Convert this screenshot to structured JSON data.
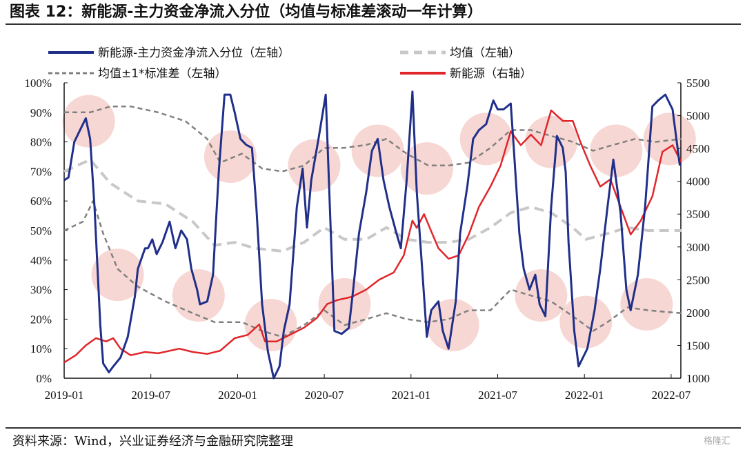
{
  "title": "图表 12：新能源-主力资金净流入分位（均值与标准差滚动一年计算）",
  "source": "资料来源：Wind，兴业证券经济与金融研究院整理",
  "watermark": "格隆汇",
  "chart_data": {
    "type": "line",
    "x_unit": "months since 2019-01",
    "x_ticks": [
      {
        "m": 0,
        "label": "2019-01"
      },
      {
        "m": 6,
        "label": "2019-07"
      },
      {
        "m": 12,
        "label": "2020-01"
      },
      {
        "m": 18,
        "label": "2020-07"
      },
      {
        "m": 24,
        "label": "2021-01"
      },
      {
        "m": 30,
        "label": "2021-07"
      },
      {
        "m": 36,
        "label": "2022-01"
      },
      {
        "m": 42,
        "label": "2022-07"
      }
    ],
    "xlim": [
      0,
      42.7
    ],
    "ylim_left": [
      0,
      100
    ],
    "ylim_right": [
      1000,
      5500
    ],
    "left_ticks": [
      "0%",
      "10%",
      "20%",
      "30%",
      "40%",
      "50%",
      "60%",
      "70%",
      "80%",
      "90%",
      "100%"
    ],
    "right_ticks": [
      "1000",
      "1500",
      "2000",
      "2500",
      "3000",
      "3500",
      "4000",
      "4500",
      "5000",
      "5500"
    ],
    "legend": {
      "placement": "top",
      "items": [
        {
          "label": "新能源-主力资金净流入分位（左轴）",
          "color": "#1f2f8a",
          "style": "solid"
        },
        {
          "label": "均值（左轴）",
          "color": "#c8c8c8",
          "style": "dash"
        },
        {
          "label": "均值±1*标准差（左轴）",
          "color": "#808080",
          "style": "dash"
        },
        {
          "label": "新能源（右轴）",
          "color": "#e0262a",
          "style": "solid"
        }
      ]
    },
    "series": [
      {
        "name": "新能源-主力资金净流入分位（左轴）",
        "axis": "left",
        "color": "#1f2f8a",
        "width": 3,
        "dash": "",
        "points": [
          [
            0,
            67
          ],
          [
            0.3,
            68
          ],
          [
            0.7,
            80
          ],
          [
            1.1,
            84
          ],
          [
            1.5,
            88
          ],
          [
            1.8,
            81
          ],
          [
            2.1,
            58
          ],
          [
            2.5,
            18
          ],
          [
            2.7,
            5
          ],
          [
            3.1,
            2
          ],
          [
            3.4,
            4
          ],
          [
            3.9,
            7
          ],
          [
            4.4,
            14
          ],
          [
            4.9,
            28
          ],
          [
            5.1,
            37
          ],
          [
            5.6,
            44
          ],
          [
            5.8,
            44
          ],
          [
            6.1,
            47
          ],
          [
            6.4,
            42
          ],
          [
            6.8,
            46
          ],
          [
            7.3,
            53
          ],
          [
            7.7,
            44
          ],
          [
            8.1,
            50
          ],
          [
            8.5,
            47
          ],
          [
            8.8,
            37
          ],
          [
            9.2,
            30
          ],
          [
            9.4,
            25
          ],
          [
            9.9,
            26
          ],
          [
            10.3,
            35
          ],
          [
            10.7,
            70
          ],
          [
            11.1,
            96
          ],
          [
            11.5,
            96
          ],
          [
            11.8,
            90
          ],
          [
            12.2,
            81
          ],
          [
            12.6,
            79
          ],
          [
            13.0,
            78
          ],
          [
            13.3,
            58
          ],
          [
            13.7,
            25
          ],
          [
            14.1,
            9
          ],
          [
            14.5,
            0
          ],
          [
            14.9,
            4
          ],
          [
            15.2,
            16
          ],
          [
            15.6,
            25
          ],
          [
            16.1,
            58
          ],
          [
            16.5,
            71
          ],
          [
            16.8,
            51
          ],
          [
            17.1,
            67
          ],
          [
            17.6,
            81
          ],
          [
            18.1,
            96
          ],
          [
            18.4,
            56
          ],
          [
            18.7,
            16
          ],
          [
            19.2,
            15
          ],
          [
            19.7,
            17
          ],
          [
            20.0,
            30
          ],
          [
            20.4,
            49
          ],
          [
            20.9,
            63
          ],
          [
            21.3,
            77
          ],
          [
            21.7,
            81
          ],
          [
            22.1,
            67
          ],
          [
            22.5,
            58
          ],
          [
            23.0,
            49
          ],
          [
            23.3,
            44
          ],
          [
            23.7,
            67
          ],
          [
            24.1,
            97
          ],
          [
            24.4,
            63
          ],
          [
            24.8,
            35
          ],
          [
            25.1,
            14
          ],
          [
            25.4,
            23
          ],
          [
            25.9,
            26
          ],
          [
            26.2,
            16
          ],
          [
            26.6,
            10
          ],
          [
            27.1,
            26
          ],
          [
            27.4,
            49
          ],
          [
            27.9,
            65
          ],
          [
            28.3,
            81
          ],
          [
            28.7,
            84
          ],
          [
            29.2,
            86
          ],
          [
            29.7,
            94
          ],
          [
            30.0,
            91
          ],
          [
            30.4,
            91
          ],
          [
            30.9,
            93
          ],
          [
            31.1,
            79
          ],
          [
            31.5,
            49
          ],
          [
            31.8,
            37
          ],
          [
            32.2,
            30
          ],
          [
            32.6,
            35
          ],
          [
            32.9,
            25
          ],
          [
            33.3,
            21
          ],
          [
            33.7,
            58
          ],
          [
            34.1,
            82
          ],
          [
            34.5,
            78
          ],
          [
            34.7,
            70
          ],
          [
            34.9,
            46
          ],
          [
            35.3,
            16
          ],
          [
            35.6,
            4
          ],
          [
            35.9,
            7
          ],
          [
            36.2,
            10
          ],
          [
            36.7,
            23
          ],
          [
            37.1,
            37
          ],
          [
            37.6,
            58
          ],
          [
            38.0,
            74
          ],
          [
            38.5,
            56
          ],
          [
            38.9,
            30
          ],
          [
            39.2,
            23
          ],
          [
            39.7,
            35
          ],
          [
            40.2,
            58
          ],
          [
            40.7,
            92
          ],
          [
            41.1,
            94
          ],
          [
            41.6,
            96
          ],
          [
            42.1,
            91
          ],
          [
            42.6,
            72
          ]
        ]
      },
      {
        "name": "均值（左轴）",
        "axis": "left",
        "color": "#c8c8c8",
        "width": 4,
        "dash": "14 8",
        "points": [
          [
            0,
            70
          ],
          [
            1.8,
            74
          ],
          [
            3.2,
            66
          ],
          [
            5.1,
            60
          ],
          [
            7.0,
            59
          ],
          [
            8.9,
            53
          ],
          [
            10.4,
            45
          ],
          [
            11.8,
            46
          ],
          [
            13.2,
            44
          ],
          [
            15.1,
            43
          ],
          [
            16.6,
            46
          ],
          [
            18.0,
            51
          ],
          [
            19.4,
            47
          ],
          [
            20.9,
            47
          ],
          [
            22.3,
            51
          ],
          [
            23.7,
            47
          ],
          [
            25.2,
            46
          ],
          [
            26.6,
            46
          ],
          [
            28.0,
            47
          ],
          [
            29.5,
            51
          ],
          [
            30.9,
            56
          ],
          [
            32.3,
            58
          ],
          [
            33.7,
            56
          ],
          [
            35.2,
            51
          ],
          [
            36.1,
            47
          ],
          [
            37.6,
            49
          ],
          [
            39.0,
            51
          ],
          [
            40.4,
            50
          ],
          [
            42.7,
            50
          ]
        ]
      },
      {
        "name": "均值+1*标准差",
        "axis": "left",
        "color": "#808080",
        "width": 2.5,
        "dash": "7 5",
        "points": [
          [
            0,
            90
          ],
          [
            1.8,
            90
          ],
          [
            3.2,
            92
          ],
          [
            4.6,
            92
          ],
          [
            6.5,
            90
          ],
          [
            8.4,
            87
          ],
          [
            9.9,
            81
          ],
          [
            10.8,
            73
          ],
          [
            12.3,
            76
          ],
          [
            13.7,
            71
          ],
          [
            15.1,
            70
          ],
          [
            16.6,
            72
          ],
          [
            18.0,
            78
          ],
          [
            19.4,
            78
          ],
          [
            20.9,
            79
          ],
          [
            22.3,
            81
          ],
          [
            23.7,
            76
          ],
          [
            25.2,
            72
          ],
          [
            26.6,
            72
          ],
          [
            28.0,
            73
          ],
          [
            29.5,
            78
          ],
          [
            30.9,
            84
          ],
          [
            32.3,
            84
          ],
          [
            33.7,
            82
          ],
          [
            35.2,
            80
          ],
          [
            36.6,
            77
          ],
          [
            38.0,
            79
          ],
          [
            39.5,
            81
          ],
          [
            40.9,
            80
          ],
          [
            42.7,
            81
          ]
        ]
      },
      {
        "name": "均值-1*标准差",
        "axis": "left",
        "color": "#808080",
        "width": 2.5,
        "dash": "7 5",
        "points": [
          [
            0,
            50
          ],
          [
            1.3,
            53
          ],
          [
            2.0,
            60
          ],
          [
            2.7,
            49
          ],
          [
            3.7,
            37
          ],
          [
            5.1,
            31
          ],
          [
            7.0,
            26
          ],
          [
            8.9,
            22
          ],
          [
            10.4,
            19
          ],
          [
            12.3,
            19
          ],
          [
            13.7,
            16
          ],
          [
            15.1,
            14
          ],
          [
            16.6,
            18
          ],
          [
            18.0,
            23
          ],
          [
            19.4,
            18
          ],
          [
            20.9,
            20
          ],
          [
            22.3,
            22
          ],
          [
            23.7,
            20
          ],
          [
            25.2,
            19
          ],
          [
            26.6,
            20
          ],
          [
            28.0,
            23
          ],
          [
            29.5,
            23
          ],
          [
            30.9,
            30
          ],
          [
            32.3,
            28
          ],
          [
            33.7,
            26
          ],
          [
            35.2,
            21
          ],
          [
            36.6,
            16
          ],
          [
            37.6,
            19
          ],
          [
            39.0,
            24
          ],
          [
            40.4,
            23
          ],
          [
            42.7,
            22
          ]
        ]
      },
      {
        "name": "新能源（右轴）",
        "axis": "right",
        "color": "#e0262a",
        "width": 2.5,
        "dash": "",
        "points": [
          [
            0,
            1240
          ],
          [
            0.8,
            1350
          ],
          [
            1.5,
            1500
          ],
          [
            2.2,
            1610
          ],
          [
            2.9,
            1560
          ],
          [
            3.4,
            1610
          ],
          [
            3.9,
            1450
          ],
          [
            4.6,
            1350
          ],
          [
            5.6,
            1400
          ],
          [
            6.5,
            1380
          ],
          [
            7.97,
            1450
          ],
          [
            8.9,
            1400
          ],
          [
            9.9,
            1370
          ],
          [
            10.8,
            1420
          ],
          [
            11.8,
            1610
          ],
          [
            12.7,
            1660
          ],
          [
            13.5,
            1820
          ],
          [
            13.9,
            1560
          ],
          [
            14.7,
            1560
          ],
          [
            15.6,
            1660
          ],
          [
            16.6,
            1770
          ],
          [
            17.5,
            1920
          ],
          [
            18.2,
            2130
          ],
          [
            18.9,
            2190
          ],
          [
            19.9,
            2240
          ],
          [
            20.9,
            2350
          ],
          [
            21.8,
            2500
          ],
          [
            22.8,
            2610
          ],
          [
            23.5,
            2870
          ],
          [
            24.1,
            3400
          ],
          [
            24.4,
            3290
          ],
          [
            24.9,
            3500
          ],
          [
            25.4,
            3240
          ],
          [
            25.9,
            2980
          ],
          [
            26.6,
            2820
          ],
          [
            27.3,
            2870
          ],
          [
            28.0,
            3190
          ],
          [
            28.7,
            3610
          ],
          [
            29.5,
            3920
          ],
          [
            30.2,
            4240
          ],
          [
            30.9,
            4760
          ],
          [
            31.6,
            4550
          ],
          [
            32.3,
            4710
          ],
          [
            33.0,
            4550
          ],
          [
            33.7,
            5080
          ],
          [
            34.5,
            4920
          ],
          [
            35.2,
            4920
          ],
          [
            35.7,
            4610
          ],
          [
            36.4,
            4240
          ],
          [
            37.1,
            3920
          ],
          [
            37.8,
            4030
          ],
          [
            38.5,
            3610
          ],
          [
            39.2,
            3190
          ],
          [
            39.9,
            3400
          ],
          [
            40.7,
            3770
          ],
          [
            41.4,
            4450
          ],
          [
            42.1,
            4550
          ],
          [
            42.7,
            4290
          ]
        ]
      }
    ],
    "highlights": [
      [
        1.7,
        87
      ],
      [
        3.7,
        35
      ],
      [
        9.3,
        28
      ],
      [
        11.5,
        75
      ],
      [
        14.3,
        18
      ],
      [
        17.3,
        72
      ],
      [
        19.4,
        25
      ],
      [
        21.7,
        77
      ],
      [
        25.1,
        71
      ],
      [
        26.9,
        18
      ],
      [
        29.2,
        81
      ],
      [
        33.0,
        28
      ],
      [
        33.7,
        80
      ],
      [
        36.1,
        19
      ],
      [
        38.2,
        77
      ],
      [
        40.3,
        25
      ],
      [
        41.9,
        81
      ]
    ]
  }
}
